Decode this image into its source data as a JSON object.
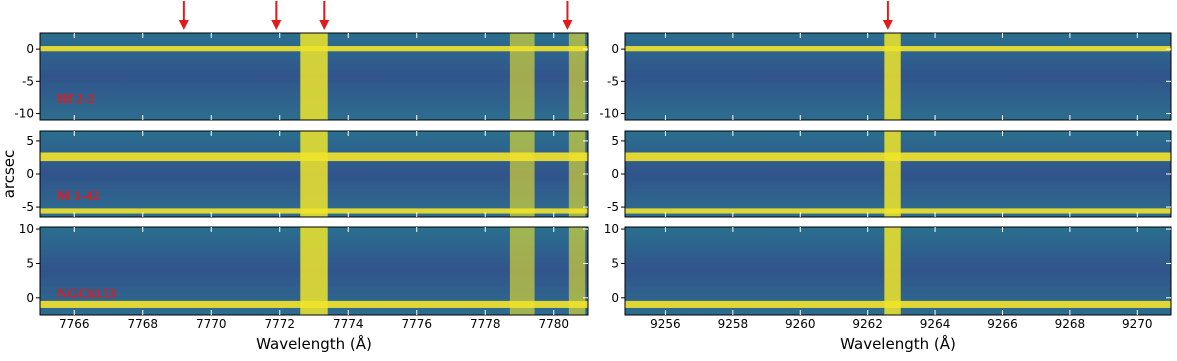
{
  "chart_data": [
    {
      "type": "image",
      "label": "Hf 2-2",
      "xlim": [
        7765,
        7781
      ],
      "xticks": [
        7766,
        7768,
        7770,
        7772,
        7774,
        7776,
        7778,
        7780
      ],
      "ylim": [
        -11,
        2.5
      ],
      "yticks": [
        0,
        -5,
        -10
      ],
      "arrows": [
        7769.2,
        7771.9,
        7773.3,
        7780.4
      ]
    },
    {
      "type": "image",
      "xlim": [
        9254.8,
        9271
      ],
      "xticks": [
        9256,
        9258,
        9260,
        9262,
        9264,
        9266,
        9268,
        9270
      ],
      "ylim": [
        -11,
        2.5
      ],
      "yticks": [
        0,
        -5,
        -10
      ],
      "arrows": [
        9262.6
      ]
    },
    {
      "type": "image",
      "label": "M 1-42",
      "ylabel": "arcsec",
      "xlim": [
        7765,
        7781
      ],
      "xticks": [
        7766,
        7768,
        7770,
        7772,
        7774,
        7776,
        7778,
        7780
      ],
      "ylim": [
        -6.5,
        6.5
      ],
      "yticks": [
        5,
        0,
        -5
      ]
    },
    {
      "type": "image",
      "xlim": [
        9254.8,
        9271
      ],
      "xticks": [
        9256,
        9258,
        9260,
        9262,
        9264,
        9266,
        9268,
        9270
      ],
      "ylim": [
        -6.5,
        6.5
      ],
      "yticks": [
        5,
        0,
        -5
      ]
    },
    {
      "type": "image",
      "label": "NGC6153",
      "xlabel": "Wavelength (Å)",
      "xlim": [
        7765,
        7781
      ],
      "xticks": [
        7766,
        7768,
        7770,
        7772,
        7774,
        7776,
        7778,
        7780
      ],
      "ylim": [
        -2.5,
        10.3
      ],
      "yticks": [
        10,
        5,
        0
      ]
    },
    {
      "type": "image",
      "xlabel": "Wavelength (Å)",
      "xlim": [
        9254.8,
        9271
      ],
      "xticks": [
        9256,
        9258,
        9260,
        9262,
        9264,
        9266,
        9268,
        9270
      ],
      "ylim": [
        -2.5,
        10.3
      ],
      "yticks": [
        10,
        5,
        0
      ]
    }
  ]
}
